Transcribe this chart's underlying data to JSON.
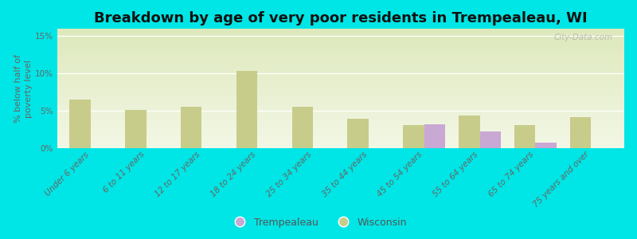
{
  "title": "Breakdown by age of very poor residents in Trempealeau, WI",
  "ylabel": "% below half of\npoverty level",
  "categories": [
    "Under 6 years",
    "6 to 11 years",
    "12 to 17 years",
    "18 to 24 years",
    "25 to 34 years",
    "35 to 44 years",
    "45 to 54 years",
    "55 to 64 years",
    "65 to 74 years",
    "75 years and over"
  ],
  "trempealeau": [
    0,
    0,
    0,
    0,
    0,
    0,
    3.2,
    2.2,
    0.8,
    0
  ],
  "wisconsin": [
    6.5,
    5.1,
    5.6,
    10.4,
    5.5,
    3.9,
    3.1,
    4.4,
    3.1,
    4.2
  ],
  "trempealeau_color": "#c9a8d4",
  "wisconsin_color": "#c8cc8a",
  "background_color": "#00e5e5",
  "plot_bg_top": "#dde8bb",
  "plot_bg_bottom": "#f3f7e6",
  "ylim": [
    0,
    16
  ],
  "yticks": [
    0,
    5,
    10,
    15
  ],
  "ytick_labels": [
    "0%",
    "5%",
    "10%",
    "15%"
  ],
  "title_fontsize": 13,
  "axis_label_fontsize": 8,
  "tick_fontsize": 7.5,
  "watermark": "City-Data.com",
  "bar_width": 0.38
}
